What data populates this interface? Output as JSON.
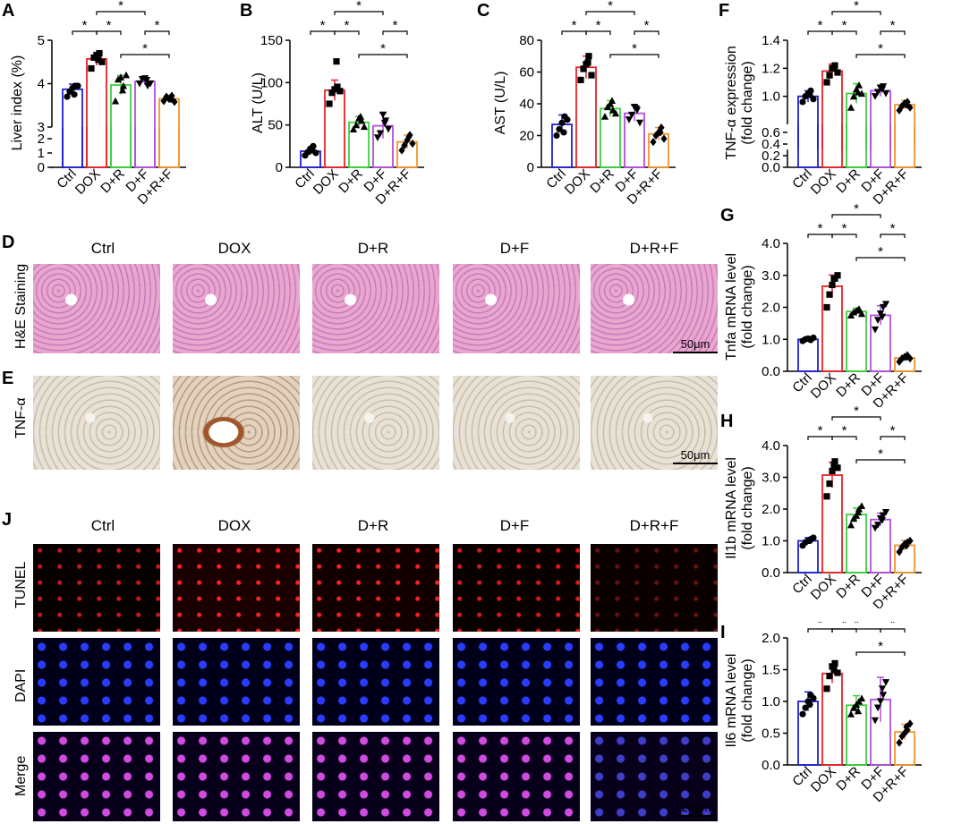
{
  "groups": [
    "Ctrl",
    "DOX",
    "D+R",
    "D+F",
    "D+R+F"
  ],
  "colors": {
    "Ctrl": "#1f1fd6",
    "DOX": "#e8222a",
    "D+R": "#3cd23c",
    "D+F": "#b34de0",
    "D+R+F": "#f0962e"
  },
  "markers": [
    "circle",
    "square",
    "triangle",
    "triangle-down",
    "diamond"
  ],
  "panels": {
    "D": {
      "letter": "D",
      "row_label": "H&E Staining",
      "scale": "50μm"
    },
    "E": {
      "letter": "E",
      "row_label": "TNF-α",
      "scale": "50μm"
    },
    "J": {
      "letter": "J",
      "row_labels": [
        "TUNEL",
        "DAPI",
        "Merge"
      ],
      "scale": "20μm"
    }
  },
  "sig": "*",
  "chart_data": [
    {
      "id": "A",
      "letter": "A",
      "type": "bar",
      "ylabel": "Liver index (%)",
      "ylabel2": "",
      "broken_axis": true,
      "ylim": [
        0,
        5
      ],
      "ticks": [
        0,
        1,
        2,
        3,
        4,
        5
      ],
      "categories": [
        "Ctrl",
        "DOX",
        "D+R",
        "D+F",
        "D+R+F"
      ],
      "values": [
        3.87,
        4.57,
        3.97,
        4.05,
        3.65
      ],
      "errors": [
        0.12,
        0.15,
        0.22,
        0.08,
        0.07
      ],
      "points": [
        [
          3.7,
          3.82,
          3.9,
          3.95,
          3.95,
          3.75
        ],
        [
          4.35,
          4.6,
          4.65,
          4.7,
          4.5,
          4.55
        ],
        [
          3.6,
          4.1,
          4.15,
          3.95,
          4.2,
          3.85
        ],
        [
          4.0,
          4.1,
          4.12,
          3.95,
          4.0,
          4.08
        ],
        [
          3.6,
          3.7,
          3.65,
          3.72,
          3.58,
          3.65
        ]
      ],
      "sig_pairs": [
        [
          0,
          1
        ],
        [
          1,
          2
        ],
        [
          1,
          3
        ],
        [
          3,
          4
        ],
        [
          2,
          4
        ]
      ]
    },
    {
      "id": "B",
      "letter": "B",
      "type": "bar",
      "ylabel": "ALT (U/L)",
      "ylabel2": "",
      "broken_axis": false,
      "ylim": [
        0,
        150
      ],
      "ticks": [
        0,
        50,
        100,
        150
      ],
      "categories": [
        "Ctrl",
        "DOX",
        "D+R",
        "D+F",
        "D+R+F"
      ],
      "values": [
        19,
        91,
        53,
        49,
        30
      ],
      "errors": [
        4,
        12,
        7,
        15,
        8
      ],
      "points": [
        [
          14,
          18,
          22,
          25,
          17,
          20
        ],
        [
          75,
          88,
          92,
          95,
          90,
          125
        ],
        [
          45,
          50,
          58,
          55,
          48,
          60
        ],
        [
          35,
          40,
          62,
          55,
          45,
          52
        ],
        [
          20,
          26,
          32,
          38,
          28,
          36
        ]
      ],
      "sig_pairs": [
        [
          0,
          1
        ],
        [
          1,
          2
        ],
        [
          1,
          3
        ],
        [
          3,
          4
        ],
        [
          2,
          4
        ]
      ]
    },
    {
      "id": "C",
      "letter": "C",
      "type": "bar",
      "ylabel": "AST (U/L)",
      "ylabel2": "",
      "broken_axis": false,
      "ylim": [
        0,
        80
      ],
      "ticks": [
        0,
        20,
        40,
        60,
        80
      ],
      "categories": [
        "Ctrl",
        "DOX",
        "D+R",
        "D+F",
        "D+R+F"
      ],
      "values": [
        27,
        63,
        37,
        34,
        21
      ],
      "errors": [
        6,
        7,
        5,
        5,
        4
      ],
      "points": [
        [
          20,
          24,
          28,
          32,
          30,
          22
        ],
        [
          55,
          62,
          65,
          70,
          58,
          66
        ],
        [
          32,
          38,
          40,
          36,
          34,
          42
        ],
        [
          30,
          33,
          38,
          36,
          28,
          37
        ],
        [
          16,
          20,
          22,
          25,
          18,
          22
        ]
      ],
      "sig_pairs": [
        [
          0,
          1
        ],
        [
          1,
          2
        ],
        [
          1,
          3
        ],
        [
          3,
          4
        ],
        [
          2,
          4
        ]
      ]
    },
    {
      "id": "F",
      "letter": "F",
      "type": "bar",
      "ylabel": "TNF-α expression",
      "ylabel2": "(fold change)",
      "broken_axis": true,
      "ylim": [
        0,
        1.4
      ],
      "ticks": [
        0,
        0.2,
        0.4,
        0.6,
        1.0,
        1.2,
        1.4
      ],
      "categories": [
        "Ctrl",
        "DOX",
        "D+R",
        "D+F",
        "D+R+F"
      ],
      "values": [
        1.0,
        1.18,
        1.02,
        1.04,
        0.94
      ],
      "errors": [
        0.04,
        0.05,
        0.07,
        0.04,
        0.03
      ],
      "points": [
        [
          0.96,
          1.0,
          1.02,
          1.04,
          0.98,
          1.01
        ],
        [
          1.1,
          1.15,
          1.2,
          1.22,
          1.17,
          1.2
        ],
        [
          0.92,
          1.0,
          1.05,
          1.08,
          1.02,
          1.03
        ],
        [
          1.0,
          1.03,
          1.06,
          1.07,
          1.02,
          1.05
        ],
        [
          0.9,
          0.93,
          0.95,
          0.96,
          0.92,
          0.94
        ]
      ],
      "sig_pairs": [
        [
          0,
          1
        ],
        [
          1,
          2
        ],
        [
          1,
          3
        ],
        [
          3,
          4
        ],
        [
          2,
          4
        ]
      ]
    },
    {
      "id": "G",
      "letter": "G",
      "type": "bar",
      "ylabel": "Tnfa mRNA level",
      "ylabel2": "(fold change)",
      "broken_axis": false,
      "ylim": [
        0,
        4.0
      ],
      "ticks": [
        0,
        1.0,
        2.0,
        3.0,
        4.0
      ],
      "categories": [
        "Ctrl",
        "DOX",
        "D+R",
        "D+F",
        "D+R+F"
      ],
      "values": [
        1.0,
        2.66,
        1.87,
        1.75,
        0.42
      ],
      "errors": [
        0.05,
        0.35,
        0.1,
        0.3,
        0.08
      ],
      "points": [
        [
          0.95,
          1.0,
          1.02,
          0.98,
          1.05,
          1.0
        ],
        [
          2.0,
          2.4,
          2.7,
          2.9,
          3.0,
          2.9
        ],
        [
          1.75,
          1.85,
          1.9,
          1.95,
          1.8,
          1.92
        ],
        [
          1.3,
          1.6,
          1.8,
          2.0,
          2.1,
          1.7
        ],
        [
          0.3,
          0.4,
          0.45,
          0.5,
          0.4,
          0.45
        ]
      ],
      "sig_pairs": [
        [
          0,
          1
        ],
        [
          1,
          2
        ],
        [
          1,
          3
        ],
        [
          3,
          4
        ],
        [
          2,
          4
        ]
      ]
    },
    {
      "id": "H",
      "letter": "H",
      "type": "bar",
      "ylabel": "Il1b mRNA level",
      "ylabel2": "(fold change)",
      "broken_axis": false,
      "ylim": [
        0,
        4.0
      ],
      "ticks": [
        0,
        1.0,
        2.0,
        3.0,
        4.0
      ],
      "categories": [
        "Ctrl",
        "DOX",
        "D+R",
        "D+F",
        "D+R+F"
      ],
      "values": [
        1.0,
        3.07,
        1.83,
        1.67,
        0.86
      ],
      "errors": [
        0.1,
        0.4,
        0.2,
        0.2,
        0.15
      ],
      "points": [
        [
          0.85,
          0.95,
          1.0,
          1.05,
          1.1,
          1.0
        ],
        [
          2.4,
          2.8,
          3.2,
          3.5,
          3.3,
          3.4
        ],
        [
          1.5,
          1.7,
          1.8,
          2.0,
          2.1,
          1.9
        ],
        [
          1.4,
          1.5,
          1.7,
          1.8,
          1.9,
          1.65
        ],
        [
          0.65,
          0.8,
          0.9,
          0.95,
          1.0,
          0.85
        ]
      ],
      "sig_pairs": [
        [
          0,
          1
        ],
        [
          1,
          2
        ],
        [
          1,
          3
        ],
        [
          3,
          4
        ],
        [
          2,
          4
        ]
      ]
    },
    {
      "id": "I",
      "letter": "I",
      "type": "bar",
      "ylabel": "Il6 mRNA level",
      "ylabel2": "(fold change)",
      "broken_axis": false,
      "ylim": [
        0,
        2.0
      ],
      "ticks": [
        0,
        0.5,
        1.0,
        1.5,
        2.0
      ],
      "categories": [
        "Ctrl",
        "DOX",
        "D+R",
        "D+F",
        "D+R+F"
      ],
      "values": [
        1.0,
        1.44,
        0.94,
        1.03,
        0.52
      ],
      "errors": [
        0.15,
        0.15,
        0.15,
        0.35,
        0.12
      ],
      "points": [
        [
          0.8,
          0.9,
          1.0,
          1.1,
          1.05,
          0.95
        ],
        [
          1.2,
          1.4,
          1.55,
          1.6,
          1.45,
          1.5
        ],
        [
          0.8,
          0.9,
          0.95,
          1.0,
          1.05,
          0.85
        ],
        [
          0.7,
          0.9,
          1.0,
          1.1,
          1.3,
          1.2
        ],
        [
          0.35,
          0.45,
          0.5,
          0.55,
          0.65,
          0.6
        ]
      ],
      "sig_pairs": [
        [
          0,
          1
        ],
        [
          1,
          2
        ],
        [
          1,
          3
        ],
        [
          3,
          4
        ],
        [
          2,
          4
        ]
      ]
    }
  ]
}
